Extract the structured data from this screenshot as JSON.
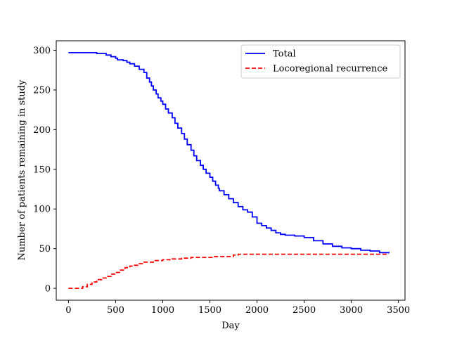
{
  "chart_data": {
    "type": "line",
    "title": "",
    "xlabel": "Day",
    "ylabel": "Number of patients remaining in study",
    "xlim": [
      -130,
      3570
    ],
    "ylim": [
      -15,
      312
    ],
    "xticks": [
      0,
      500,
      1000,
      1500,
      2000,
      2500,
      3000,
      3500
    ],
    "yticks": [
      0,
      50,
      100,
      150,
      200,
      250,
      300
    ],
    "legend_position": "top-right",
    "grid": false,
    "series": [
      {
        "name": "Total",
        "color": "#0000ff",
        "linestyle": "solid",
        "step": true,
        "x": [
          0,
          50,
          100,
          200,
          300,
          370,
          400,
          450,
          500,
          520,
          580,
          620,
          650,
          700,
          750,
          800,
          830,
          860,
          880,
          900,
          930,
          950,
          980,
          1000,
          1030,
          1060,
          1100,
          1130,
          1160,
          1200,
          1230,
          1260,
          1300,
          1330,
          1360,
          1400,
          1430,
          1460,
          1500,
          1530,
          1560,
          1590,
          1600,
          1650,
          1700,
          1750,
          1800,
          1850,
          1900,
          1950,
          2000,
          2050,
          2100,
          2150,
          2200,
          2250,
          2300,
          2400,
          2500,
          2600,
          2700,
          2800,
          2900,
          3000,
          3100,
          3200,
          3300,
          3400
        ],
        "y": [
          297,
          297,
          297,
          297,
          296,
          296,
          294,
          292,
          290,
          288,
          287,
          285,
          283,
          280,
          276,
          272,
          265,
          260,
          255,
          250,
          245,
          240,
          236,
          232,
          226,
          221,
          215,
          208,
          202,
          195,
          188,
          181,
          174,
          167,
          161,
          155,
          150,
          145,
          140,
          135,
          130,
          126,
          123,
          118,
          113,
          108,
          103,
          99,
          96,
          90,
          82,
          79,
          76,
          73,
          70,
          68,
          67,
          66,
          64,
          60,
          56,
          53,
          51,
          50,
          48,
          47,
          45,
          44
        ]
      },
      {
        "name": "Locoregional recurrence",
        "color": "#ff0000",
        "linestyle": "dashed",
        "step": true,
        "x": [
          0,
          100,
          150,
          200,
          250,
          300,
          350,
          400,
          450,
          500,
          550,
          600,
          650,
          700,
          750,
          800,
          900,
          1000,
          1100,
          1200,
          1300,
          1400,
          1500,
          1550,
          1600,
          1700,
          1750,
          1800,
          1900,
          2000,
          2500,
          3000,
          3400
        ],
        "y": [
          0,
          0,
          2,
          5,
          8,
          11,
          13,
          15,
          18,
          20,
          23,
          26,
          28,
          29,
          31,
          33,
          35,
          36,
          37,
          38,
          39,
          39,
          39,
          40,
          40,
          40,
          42,
          43,
          43,
          43,
          43,
          43,
          43
        ]
      }
    ]
  }
}
